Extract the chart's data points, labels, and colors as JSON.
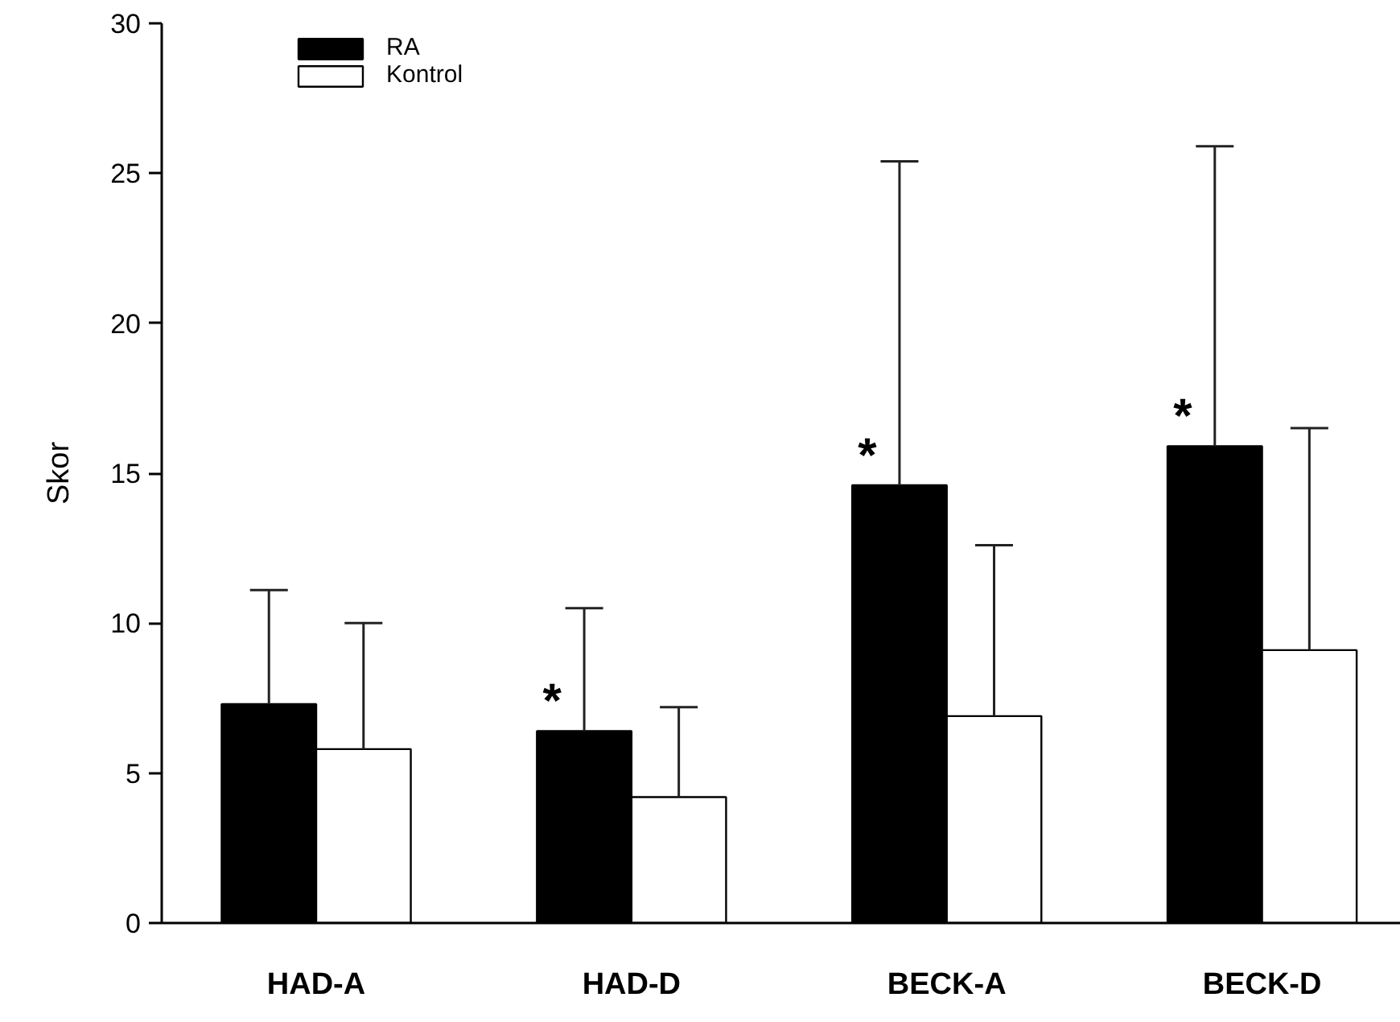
{
  "chart_data": {
    "type": "bar",
    "ylabel": "Skor",
    "categories": [
      "HAD-A",
      "HAD-D",
      "BECK-A",
      "BECK-D"
    ],
    "series": [
      {
        "name": "RA",
        "color": "#000000",
        "values": [
          7.3,
          6.4,
          14.6,
          15.9
        ],
        "value_labels": [
          null,
          "*",
          "*",
          "*"
        ],
        "errors": [
          [
            7.3,
            11.1
          ],
          [
            6.4,
            10.5
          ],
          [
            14.6,
            25.4
          ],
          [
            15.9,
            25.9
          ]
        ]
      },
      {
        "name": "Kontrol",
        "color": "#ffffff",
        "values": [
          5.8,
          4.2,
          6.9,
          9.1
        ],
        "errors": [
          [
            5.8,
            10.0
          ],
          [
            4.2,
            7.2
          ],
          [
            6.9,
            12.6
          ],
          [
            9.1,
            16.5
          ]
        ]
      }
    ],
    "ylim": [
      0,
      30
    ],
    "yticks": [
      0,
      5,
      10,
      15,
      20,
      25,
      30
    ],
    "grid": false,
    "legend": "top left"
  }
}
